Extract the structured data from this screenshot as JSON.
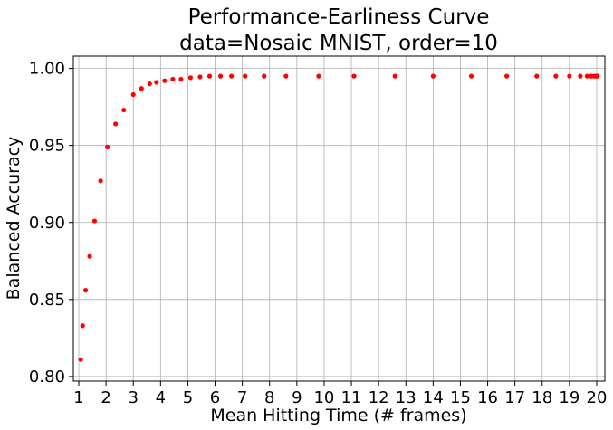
{
  "chart_data": {
    "type": "scatter",
    "title": [
      "Performance-Earliness Curve",
      "data=Nosaic MNIST, order=10"
    ],
    "xlabel": "Mean Hitting Time (# frames)",
    "ylabel": "Balanced Accuracy",
    "xlim": [
      0.8,
      20.3
    ],
    "ylim": [
      0.797,
      1.008
    ],
    "xticks": [
      1,
      2,
      3,
      4,
      5,
      6,
      7,
      8,
      9,
      10,
      11,
      12,
      13,
      14,
      15,
      16,
      17,
      18,
      19,
      20
    ],
    "yticks": [
      0.8,
      0.85,
      0.9,
      0.95,
      1.0
    ],
    "ytick_labels": [
      "0.80",
      "0.85",
      "0.90",
      "0.95",
      "1.00"
    ],
    "grid": true,
    "marker_color": "#ff0000",
    "series": [
      {
        "x": [
          1.07,
          1.14,
          1.25,
          1.4,
          1.58,
          1.8,
          2.05,
          2.35,
          2.65,
          3.0,
          3.3,
          3.6,
          3.85,
          4.15,
          4.45,
          4.75,
          5.1,
          5.45,
          5.8,
          6.2,
          6.6,
          7.1,
          7.8,
          8.6,
          9.8,
          11.1,
          12.6,
          14.0,
          15.4,
          16.7,
          17.8,
          18.5,
          19.0,
          19.4,
          19.65,
          19.8,
          19.9,
          19.98,
          20.03
        ],
        "y": [
          0.811,
          0.833,
          0.856,
          0.878,
          0.901,
          0.927,
          0.949,
          0.964,
          0.973,
          0.983,
          0.987,
          0.99,
          0.991,
          0.992,
          0.993,
          0.993,
          0.994,
          0.9945,
          0.995,
          0.995,
          0.995,
          0.995,
          0.995,
          0.995,
          0.995,
          0.995,
          0.995,
          0.995,
          0.995,
          0.995,
          0.995,
          0.995,
          0.995,
          0.995,
          0.995,
          0.995,
          0.995,
          0.995,
          0.995
        ]
      }
    ]
  }
}
